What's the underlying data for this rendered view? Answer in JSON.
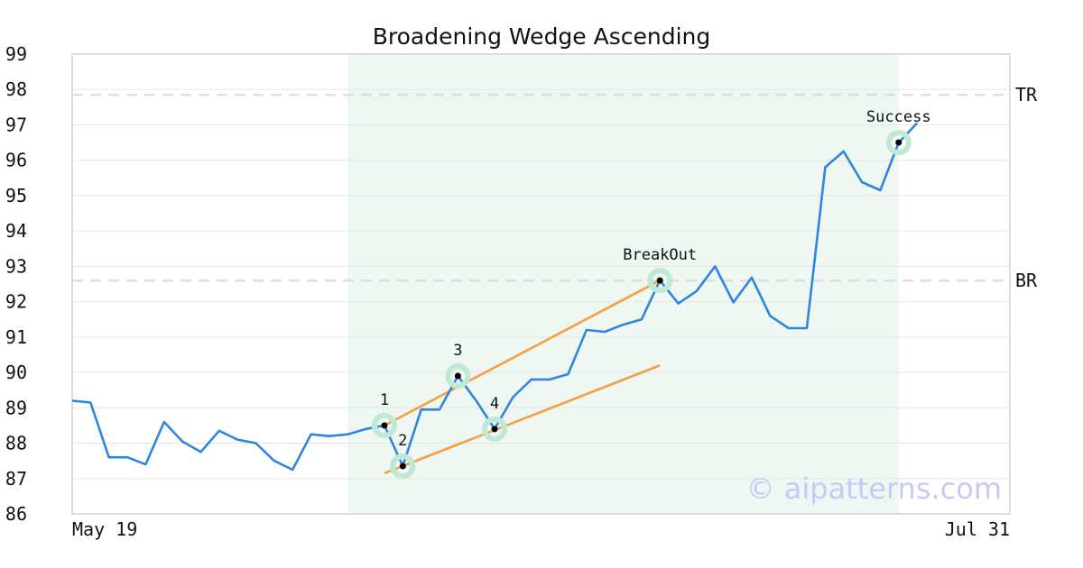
{
  "chart_data": {
    "type": "line",
    "title": "Broadening Wedge Ascending",
    "xlabel": "",
    "ylabel": "",
    "ylim": [
      86,
      99
    ],
    "y_ticks": [
      86,
      87,
      88,
      89,
      90,
      91,
      92,
      93,
      94,
      95,
      96,
      97,
      98,
      99
    ],
    "x_tick_labels": [
      "May 19",
      "Jul 31"
    ],
    "grid": true,
    "watermark": "© aipatterns.com",
    "series": [
      {
        "color": "#2e86de",
        "values": [
          89.2,
          89.15,
          87.6,
          87.6,
          87.4,
          88.6,
          88.05,
          87.75,
          88.35,
          88.1,
          88.0,
          87.5,
          87.25,
          88.25,
          88.2,
          88.25,
          88.4,
          88.5,
          87.35,
          88.95,
          88.95,
          89.9,
          89.2,
          88.4,
          89.3,
          89.8,
          89.8,
          89.95,
          91.2,
          91.15,
          91.35,
          91.5,
          92.6,
          91.95,
          92.3,
          93.0,
          91.98,
          92.68,
          91.6,
          91.25,
          91.25,
          95.8,
          96.25,
          95.38,
          95.15,
          96.5,
          97.05
        ]
      }
    ],
    "levels": [
      {
        "label": "TR",
        "value": 97.85
      },
      {
        "label": "BR",
        "value": 92.6
      }
    ],
    "highlight_region": {
      "start_index": 15,
      "end_index": 45,
      "color": "#eef7f2"
    },
    "trendlines": [
      {
        "color": "#f4a040",
        "from": {
          "index": 17,
          "value": 88.5
        },
        "to": {
          "index": 32,
          "value": 92.6
        }
      },
      {
        "color": "#f4a040",
        "from": {
          "index": 17,
          "value": 87.15
        },
        "to": {
          "index": 32,
          "value": 90.2
        }
      }
    ],
    "annotations": [
      {
        "label": "1",
        "index": 17,
        "value": 88.5
      },
      {
        "label": "2",
        "index": 18,
        "value": 87.35
      },
      {
        "label": "3",
        "index": 21,
        "value": 89.9
      },
      {
        "label": "4",
        "index": 23,
        "value": 88.4
      },
      {
        "label": "BreakOut",
        "index": 32,
        "value": 92.6
      },
      {
        "label": "Success",
        "index": 45,
        "value": 96.5
      }
    ]
  }
}
